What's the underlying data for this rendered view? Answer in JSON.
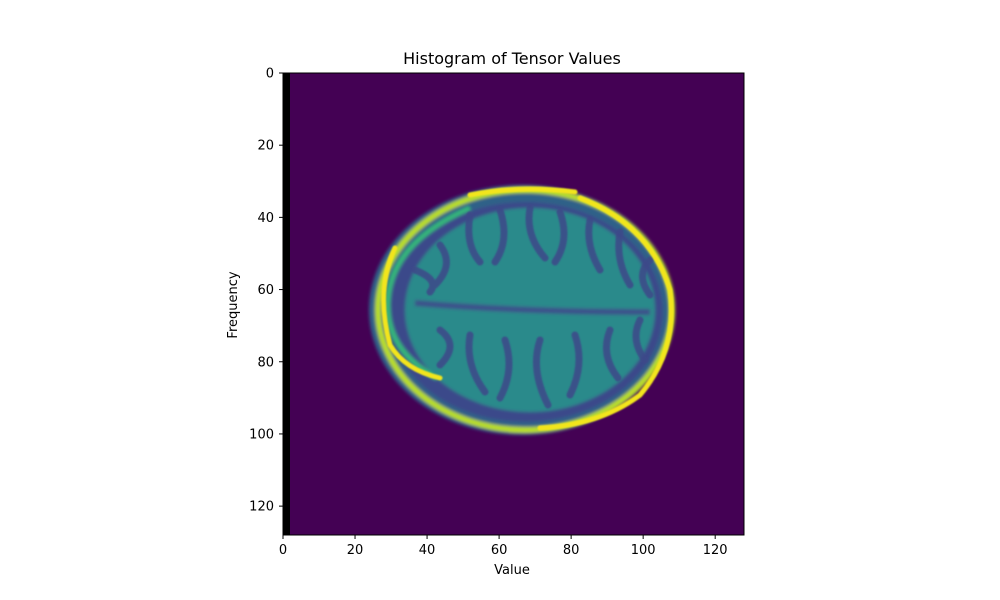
{
  "chart_data": {
    "type": "heatmap",
    "title": "Histogram of Tensor Values",
    "xlabel": "Value",
    "ylabel": "Frequency",
    "xlim": [
      0,
      128
    ],
    "ylim": [
      128,
      0
    ],
    "x_ticks": [
      "0",
      "20",
      "40",
      "60",
      "80",
      "100",
      "120"
    ],
    "y_ticks": [
      "0",
      "20",
      "40",
      "60",
      "80",
      "100",
      "120"
    ],
    "colormap": "viridis",
    "colors": {
      "background": "#440154",
      "left_strip": "#000000",
      "brain_tissue": "#2c8c8c",
      "gray_matter": "#3b4f8b",
      "skull_ring": "#e8e51a",
      "axes": "#000000"
    }
  }
}
